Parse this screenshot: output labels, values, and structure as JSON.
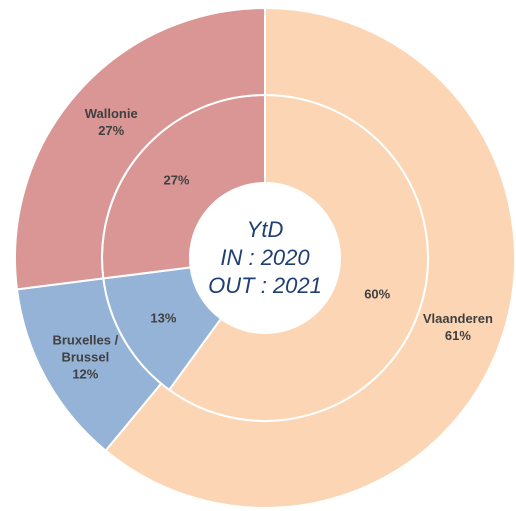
{
  "chart_data": {
    "type": "donut",
    "center_title": "YtD",
    "categories": [
      "Vlaanderen",
      "Bruxelles / Brussel",
      "Wallonie"
    ],
    "colors": [
      "#fcd5b4",
      "#95b3d7",
      "#d99694"
    ],
    "series": [
      {
        "name": "IN : 2020",
        "values": [
          60,
          13,
          27
        ],
        "value_labels": [
          "60%",
          "13%",
          "27%"
        ]
      },
      {
        "name": "OUT : 2021",
        "values": [
          61,
          12,
          27
        ],
        "value_labels": [
          "61%",
          "12%",
          "27%"
        ]
      }
    ]
  }
}
